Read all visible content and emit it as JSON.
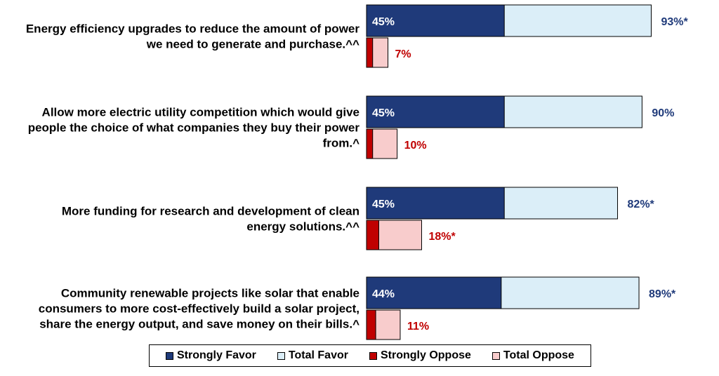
{
  "chart_data": {
    "type": "bar",
    "orientation": "horizontal",
    "categories": [
      [
        "Energy efficiency upgrades to reduce the amount of power",
        "we need to generate and purchase.^^"
      ],
      [
        "Allow more electric utility competition which would give",
        "people the choice of what companies they buy their power",
        "from.^"
      ],
      [
        "More funding for research and development of clean",
        "energy solutions.^^"
      ],
      [
        "Community renewable projects like solar that enable",
        "consumers to more cost-effectively build a solar project,",
        "share the energy output, and save money on  their bills.^"
      ]
    ],
    "series": [
      {
        "name": "Strongly Favor",
        "values": [
          45,
          45,
          45,
          44
        ],
        "labels": [
          "45%",
          "45%",
          "45%",
          "44%"
        ],
        "color": "#1f3a7a"
      },
      {
        "name": "Total Favor",
        "values": [
          93,
          90,
          82,
          89
        ],
        "labels": [
          "93%*",
          "90%",
          "82%*",
          "89%*"
        ],
        "color": "#dbeef8"
      },
      {
        "name": "Strongly Oppose",
        "values": [
          2,
          2,
          4,
          3
        ],
        "color": "#c00000"
      },
      {
        "name": "Total Oppose",
        "values": [
          7,
          10,
          18,
          11
        ],
        "labels": [
          "7%",
          "10%",
          "18%*",
          "11%"
        ],
        "color": "#f8cccc"
      }
    ],
    "xlim": [
      0,
      100
    ],
    "grid": false,
    "legend_position": "bottom"
  }
}
